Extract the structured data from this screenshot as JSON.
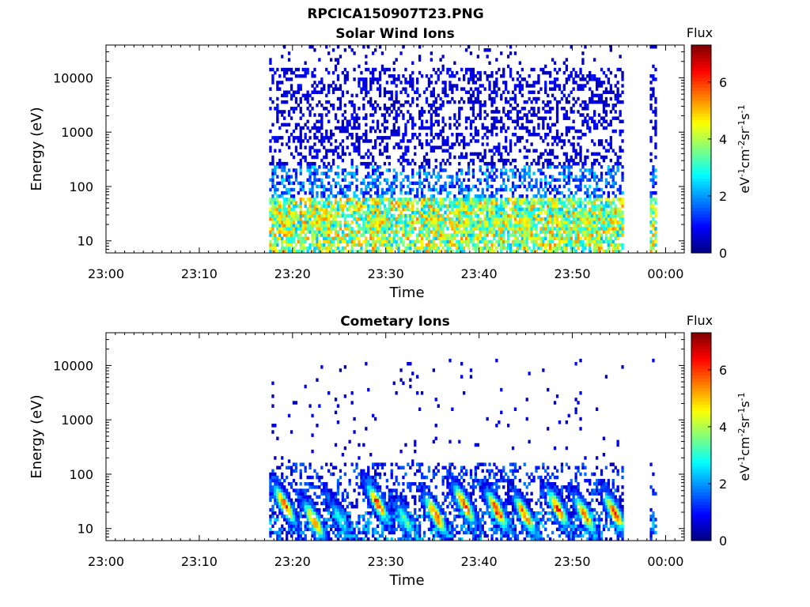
{
  "figure_title": "RPCICA150907T23.PNG",
  "chart_data": [
    {
      "type": "heatmap",
      "title": "Solar Wind Ions",
      "xlabel": "Time",
      "ylabel": "Energy (eV)",
      "x_ticks": [
        "23:00",
        "23:10",
        "23:20",
        "23:30",
        "23:40",
        "23:50",
        "00:00"
      ],
      "x_range_minutes": [
        0,
        62
      ],
      "y_ticks": [
        "10",
        "100",
        "1000",
        "10000"
      ],
      "y_scale": "log",
      "y_range": [
        6,
        40000
      ],
      "colorbar": {
        "title": "Flux",
        "label": "eV-1cm-2sr-1s-1",
        "ticks": [
          "0",
          "2",
          "4",
          "6"
        ],
        "range": [
          0,
          7.3
        ]
      },
      "data_coverage_minutes": [
        [
          17.5,
          55.5
        ],
        [
          58.3,
          59.0
        ]
      ],
      "character": "broadband noise at high energies, moderate bursts (2-5) at 10-50 eV"
    },
    {
      "type": "heatmap",
      "title": "Cometary Ions",
      "xlabel": "Time",
      "ylabel": "Energy (eV)",
      "x_ticks": [
        "23:00",
        "23:10",
        "23:20",
        "23:30",
        "23:40",
        "23:50",
        "00:00"
      ],
      "x_range_minutes": [
        0,
        62
      ],
      "y_ticks": [
        "10",
        "100",
        "1000",
        "10000"
      ],
      "y_scale": "log",
      "y_range": [
        6,
        40000
      ],
      "colorbar": {
        "title": "Flux",
        "label": "eV-1cm-2sr-1s-1",
        "ticks": [
          "0",
          "2",
          "4",
          "6"
        ],
        "range": [
          0,
          7.3
        ]
      },
      "data_coverage_minutes": [
        [
          17.5,
          55.5
        ],
        [
          58.3,
          59.0
        ]
      ],
      "bursts": [
        {
          "t": 19.0,
          "peak_energy_ev": 28,
          "peak_flux": 6.8
        },
        {
          "t": 22.2,
          "peak_energy_ev": 14,
          "peak_flux": 6.5
        },
        {
          "t": 25.0,
          "peak_energy_ev": 15,
          "peak_flux": 3.5
        },
        {
          "t": 29.0,
          "peak_energy_ev": 30,
          "peak_flux": 6.8
        },
        {
          "t": 32.0,
          "peak_energy_ev": 14,
          "peak_flux": 4.0
        },
        {
          "t": 35.2,
          "peak_energy_ev": 18,
          "peak_flux": 7.0
        },
        {
          "t": 38.3,
          "peak_energy_ev": 28,
          "peak_flux": 7.0
        },
        {
          "t": 41.8,
          "peak_energy_ev": 22,
          "peak_flux": 7.2
        },
        {
          "t": 44.8,
          "peak_energy_ev": 18,
          "peak_flux": 6.8
        },
        {
          "t": 48.3,
          "peak_energy_ev": 24,
          "peak_flux": 6.8
        },
        {
          "t": 51.2,
          "peak_energy_ev": 18,
          "peak_flux": 6.5
        },
        {
          "t": 54.4,
          "peak_energy_ev": 20,
          "peak_flux": 6.8
        }
      ]
    }
  ]
}
